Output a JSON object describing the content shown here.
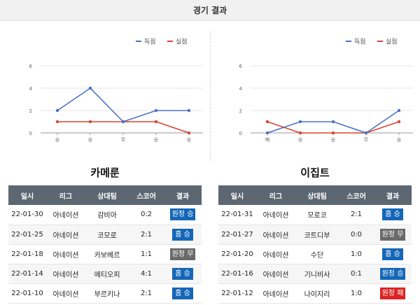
{
  "page": {
    "title": "경기 결과"
  },
  "legend": {
    "scored_label": "득점",
    "conceded_label": "실점"
  },
  "colors": {
    "scored": "#4a72c4",
    "conceded": "#d9442f",
    "win": "#1467b8",
    "draw": "#6a6a6a",
    "loss": "#dc2323"
  },
  "table_headers": {
    "date": "일시",
    "league": "리그",
    "opponent": "상대팀",
    "score": "스코어",
    "result": "결과"
  },
  "teams": [
    {
      "name": "카메룬",
      "matches": [
        {
          "date": "22-01-30",
          "league": "아네이션",
          "opponent": "감비아",
          "score": "0:2",
          "result": "원정 승",
          "result_type": "win"
        },
        {
          "date": "22-01-25",
          "league": "아네이션",
          "opponent": "코모로",
          "score": "2:1",
          "result": "홈 승",
          "result_type": "win"
        },
        {
          "date": "22-01-18",
          "league": "아네이션",
          "opponent": "카보베르",
          "score": "1:1",
          "result": "원정 무",
          "result_type": "draw"
        },
        {
          "date": "22-01-14",
          "league": "아네이션",
          "opponent": "에티오피",
          "score": "4:1",
          "result": "홈 승",
          "result_type": "win"
        },
        {
          "date": "22-01-10",
          "league": "아네이션",
          "opponent": "부르키나",
          "score": "2:1",
          "result": "홈 승",
          "result_type": "win"
        }
      ]
    },
    {
      "name": "이집트",
      "matches": [
        {
          "date": "22-01-31",
          "league": "아네이션",
          "opponent": "모로코",
          "score": "2:1",
          "result": "홈 승",
          "result_type": "win"
        },
        {
          "date": "22-01-27",
          "league": "아네이션",
          "opponent": "코트디부",
          "score": "0:0",
          "result": "원정 무",
          "result_type": "draw"
        },
        {
          "date": "22-01-20",
          "league": "아네이션",
          "opponent": "수단",
          "score": "1:0",
          "result": "홈 승",
          "result_type": "win"
        },
        {
          "date": "22-01-16",
          "league": "아네이션",
          "opponent": "기니비사",
          "score": "0:1",
          "result": "원정 승",
          "result_type": "win"
        },
        {
          "date": "22-01-12",
          "league": "아네이션",
          "opponent": "나이지리",
          "score": "1:0",
          "result": "원정 패",
          "result_type": "loss"
        }
      ]
    }
  ],
  "chart_data": [
    {
      "type": "line",
      "categories": [
        "승",
        "승",
        "무",
        "승",
        "승"
      ],
      "ylim": [
        0,
        6
      ],
      "yticks": [
        0,
        2,
        4,
        6
      ],
      "grid": true,
      "legend_position": "top-right",
      "series": [
        {
          "name": "득점",
          "values": [
            2,
            4,
            1,
            2,
            2
          ]
        },
        {
          "name": "실점",
          "values": [
            1,
            1,
            1,
            1,
            0
          ]
        }
      ]
    },
    {
      "type": "line",
      "categories": [
        "패",
        "승",
        "승",
        "무",
        "승"
      ],
      "ylim": [
        0,
        6
      ],
      "yticks": [
        0,
        2,
        4,
        6
      ],
      "grid": true,
      "legend_position": "top-right",
      "series": [
        {
          "name": "득점",
          "values": [
            0,
            1,
            1,
            0,
            2
          ]
        },
        {
          "name": "실점",
          "values": [
            1,
            0,
            0,
            0,
            1
          ]
        }
      ]
    }
  ]
}
